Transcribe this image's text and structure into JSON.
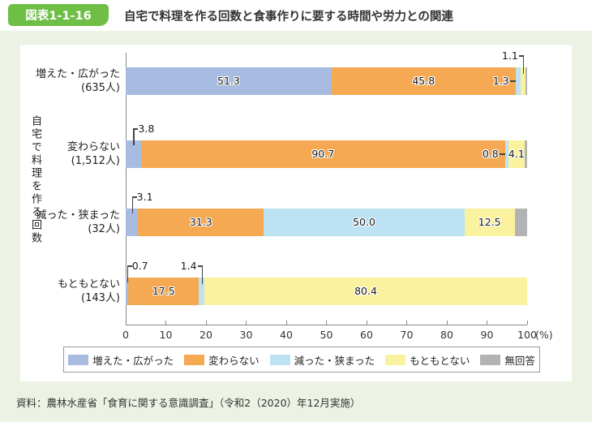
{
  "header": {
    "badge_label": "図表1-1-16",
    "title": "自宅で料理を作る回数と食事作りに要する時間や労力との関連"
  },
  "chart_data": {
    "type": "bar",
    "orientation": "horizontal",
    "stacked": true,
    "value_unit": "%",
    "axis_label": "(%)",
    "group_axis_label": "自宅で料理を作る回数",
    "xlim": [
      0,
      100
    ],
    "xticks": [
      0,
      10,
      20,
      30,
      40,
      50,
      60,
      70,
      80,
      90,
      100
    ],
    "grid": false,
    "legend_position": "bottom",
    "categories": [
      {
        "label": "増えた・広がった",
        "count": "(635人)"
      },
      {
        "label": "変わらない",
        "count": "(1,512人)"
      },
      {
        "label": "減った・狭まった",
        "count": "(32人)"
      },
      {
        "label": "もともとない",
        "count": "(143人)"
      }
    ],
    "series": [
      {
        "name": "増えた・広がった",
        "color": "#a7bce0",
        "values": [
          51.3,
          3.8,
          3.1,
          0.7
        ]
      },
      {
        "name": "変わらない",
        "color": "#f5a953",
        "values": [
          45.8,
          90.7,
          31.3,
          17.5
        ]
      },
      {
        "name": "減った・狭まった",
        "color": "#bde2f4",
        "values": [
          1.3,
          0.8,
          50.0,
          1.4
        ]
      },
      {
        "name": "もともとない",
        "color": "#fbf2a0",
        "values": [
          1.1,
          4.1,
          12.5,
          80.4
        ]
      },
      {
        "name": "無回答",
        "color": "#b3b3b3",
        "values": [
          0.5,
          0.6,
          3.1,
          0
        ],
        "labeled": false
      }
    ]
  },
  "source": "資料：農林水産省「食育に関する意識調査」（令和2（2020）年12月実施）",
  "colors": {
    "badge_green": "#6fbe45",
    "page_background": "#ecf3e5",
    "panel_background": "#ffffff",
    "axis": "#888888"
  }
}
